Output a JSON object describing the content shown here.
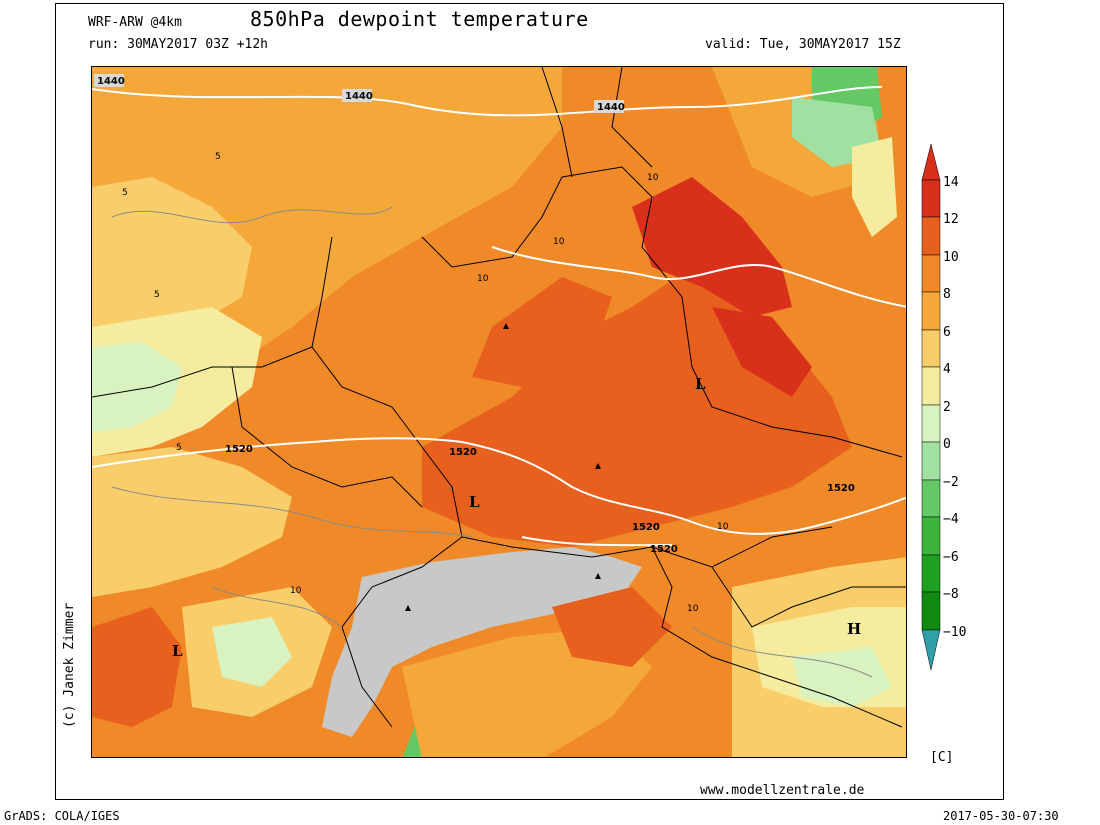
{
  "header": {
    "model": "WRF-ARW @4km",
    "title": "850hPa dewpoint temperature",
    "run": "run: 30MAY2017 03Z +12h",
    "valid": "valid: Tue, 30MAY2017 15Z"
  },
  "map": {
    "contour_labels_geopotential": [
      "1440",
      "1440",
      "1440",
      "1520",
      "1520",
      "1520",
      "1520",
      "1520"
    ],
    "contour_labels_dewpoint": [
      "5",
      "5",
      "5",
      "5",
      "10",
      "10",
      "10",
      "10",
      "10",
      "10"
    ],
    "pressure_centers": [
      "L",
      "L",
      "L",
      "H"
    ],
    "colors": {
      "minus10": "#30a0a8",
      "minus8": "#108a10",
      "minus6": "#20a020",
      "minus4": "#3cb43c",
      "minus2": "#64c864",
      "zero": "#a0e0a0",
      "plus2": "#d8f2c0",
      "plus4": "#f5eca0",
      "plus6": "#f8cd6a",
      "plus8": "#f5a83a",
      "plus10": "#f08a28",
      "plus12": "#e8601e",
      "plus14": "#d8301a",
      "terrain_mask": "#c8c8c8"
    }
  },
  "colorbar": {
    "labels": [
      "14",
      "12",
      "10",
      "8",
      "6",
      "4",
      "2",
      "0",
      "−2",
      "−4",
      "−6",
      "−8",
      "−10"
    ],
    "unit": "[C]"
  },
  "footer": {
    "copyright": "(c) Janek Zimmer",
    "website": "www.modellzentrale.de",
    "grads": "GrADS: COLA/IGES",
    "timestamp": "2017-05-30-07:30"
  }
}
